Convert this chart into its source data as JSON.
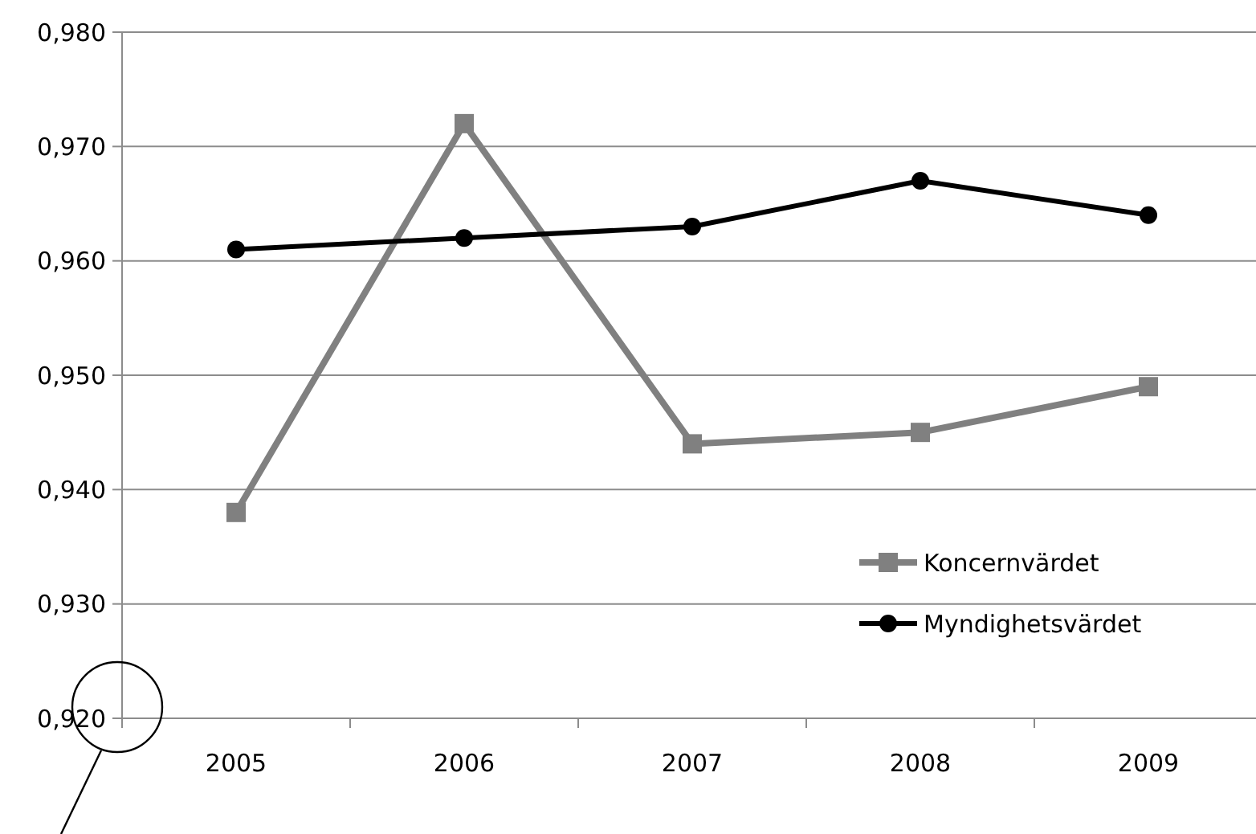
{
  "chart_data": {
    "type": "line",
    "categories": [
      "2005",
      "2006",
      "2007",
      "2008",
      "2009"
    ],
    "series": [
      {
        "name": "Koncernvärdet",
        "color": "#808080",
        "values": [
          0.938,
          0.972,
          0.944,
          0.945,
          0.949
        ],
        "marker": "square"
      },
      {
        "name": "Myndighetsvärdet",
        "color": "#000000",
        "values": [
          0.961,
          0.962,
          0.963,
          0.967,
          0.964
        ],
        "marker": "circle"
      }
    ],
    "ylim": [
      0.92,
      0.98
    ],
    "yticks": [
      {
        "value": 0.92,
        "label": "0,920"
      },
      {
        "value": 0.93,
        "label": "0,930"
      },
      {
        "value": 0.94,
        "label": "0,940"
      },
      {
        "value": 0.95,
        "label": "0,950"
      },
      {
        "value": 0.96,
        "label": "0,960"
      },
      {
        "value": 0.97,
        "label": "0,970"
      },
      {
        "value": 0.98,
        "label": "0,980"
      }
    ],
    "grid": "y",
    "legend": "bottom right",
    "line_style": "solid"
  }
}
